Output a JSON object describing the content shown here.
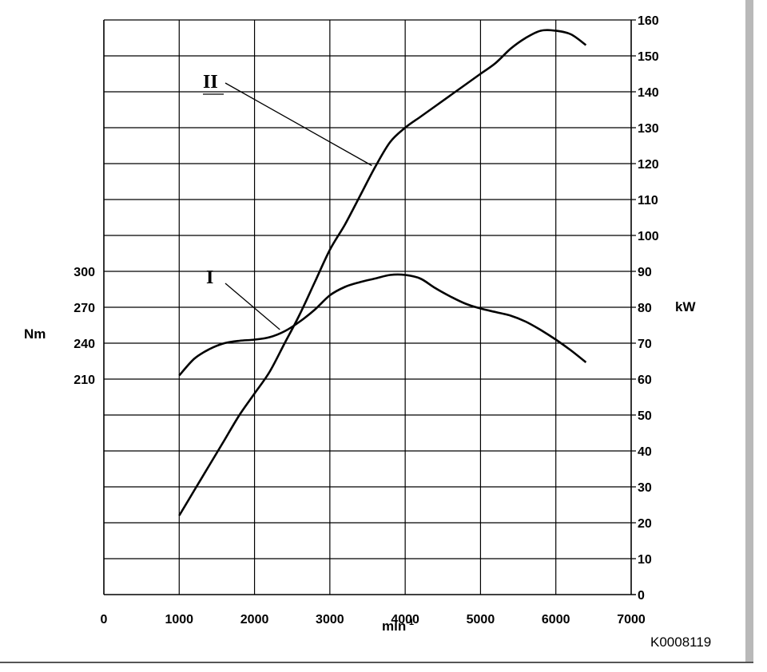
{
  "chart_data": {
    "type": "line",
    "title": "",
    "xlabel": "min",
    "xlabel_exponent": "-1",
    "y_left_label": "Nm",
    "y_right_label": "kW",
    "x_ticks": [
      "0",
      "1000",
      "2000",
      "3000",
      "4000",
      "5000",
      "6000",
      "7000"
    ],
    "y_left_ticks": [
      {
        "value": 210,
        "label": "210"
      },
      {
        "value": 240,
        "label": "240"
      },
      {
        "value": 270,
        "label": "270"
      },
      {
        "value": 300,
        "label": "300"
      }
    ],
    "y_right_ticks": [
      "0",
      "10",
      "20",
      "30",
      "40",
      "50",
      "60",
      "70",
      "80",
      "90",
      "100",
      "110",
      "120",
      "130",
      "140",
      "150",
      "160"
    ],
    "xlim": [
      0,
      7000
    ],
    "y_right_lim": [
      0,
      160
    ],
    "grid": true,
    "series": [
      {
        "name": "I",
        "axis": "left",
        "x": [
          1000,
          1200,
          1400,
          1600,
          1800,
          2000,
          2200,
          2400,
          2600,
          2800,
          3000,
          3200,
          3400,
          3600,
          3800,
          4000,
          4200,
          4400,
          4600,
          4800,
          5000,
          5200,
          5400,
          5600,
          5800,
          6000,
          6200,
          6400
        ],
        "y": [
          213,
          227,
          235,
          240,
          242,
          243,
          245,
          250,
          258,
          268,
          280,
          287,
          291,
          294,
          297,
          297,
          294,
          286,
          279,
          273,
          269,
          266,
          263,
          258,
          251,
          243,
          234,
          224
        ]
      },
      {
        "name": "II",
        "axis": "right",
        "x": [
          1000,
          1200,
          1400,
          1600,
          1800,
          2000,
          2200,
          2400,
          2600,
          2800,
          3000,
          3200,
          3400,
          3600,
          3800,
          4000,
          4200,
          4400,
          4600,
          4800,
          5000,
          5200,
          5400,
          5600,
          5800,
          6000,
          6200,
          6400
        ],
        "y": [
          22,
          29,
          36,
          43,
          50,
          56,
          62,
          70,
          78,
          87,
          96,
          103,
          111,
          119,
          126,
          130,
          133,
          136,
          139,
          142,
          145,
          148,
          152,
          155,
          157,
          157,
          156,
          153
        ]
      }
    ],
    "annotations": [
      "I",
      "II"
    ],
    "figure_code": "K0008119"
  }
}
